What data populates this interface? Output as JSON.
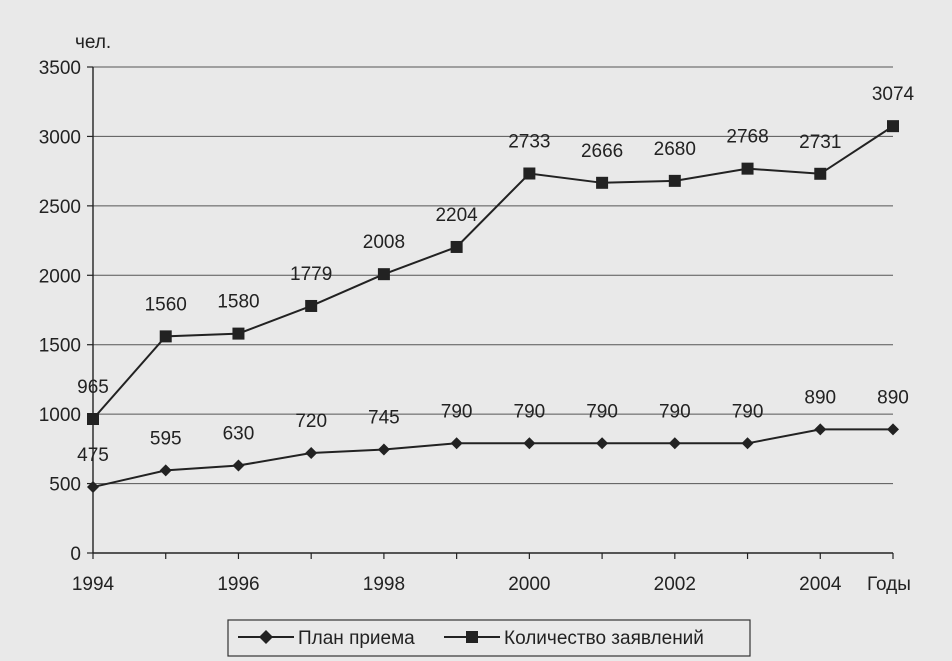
{
  "chart_data": {
    "type": "line",
    "title": "",
    "ylabel": "чел.",
    "xlabel": "Годы",
    "ylim": [
      0,
      3500
    ],
    "y_ticks": [
      0,
      500,
      1000,
      1500,
      2000,
      2500,
      3000,
      3500
    ],
    "x": [
      1994,
      1995,
      1996,
      1997,
      1998,
      1999,
      2000,
      2001,
      2002,
      2003,
      2004,
      2005
    ],
    "x_tick_labels": [
      "1994",
      "1996",
      "1998",
      "2000",
      "2002",
      "2004"
    ],
    "grid": true,
    "legend_position": "bottom",
    "series": [
      {
        "name": "План приема",
        "marker": "diamond",
        "values": [
          475,
          595,
          630,
          720,
          745,
          790,
          790,
          790,
          790,
          790,
          890,
          890
        ],
        "labels": [
          "475",
          "595",
          "630",
          "720",
          "745",
          "790",
          "790",
          "790",
          "790",
          "790",
          "890",
          "890"
        ]
      },
      {
        "name": "Количество заявлений",
        "marker": "square",
        "values": [
          965,
          1560,
          1580,
          1779,
          2008,
          2204,
          2733,
          2666,
          2680,
          2768,
          2731,
          3074
        ],
        "labels": [
          "965",
          "1560",
          "1580",
          "1779",
          "2008",
          "2204",
          "2733",
          "2666",
          "2680",
          "2768",
          "2731",
          "3074"
        ]
      }
    ],
    "colors": {
      "line": "#222222",
      "grid": "#555555",
      "background": "#e9e9e9"
    }
  }
}
